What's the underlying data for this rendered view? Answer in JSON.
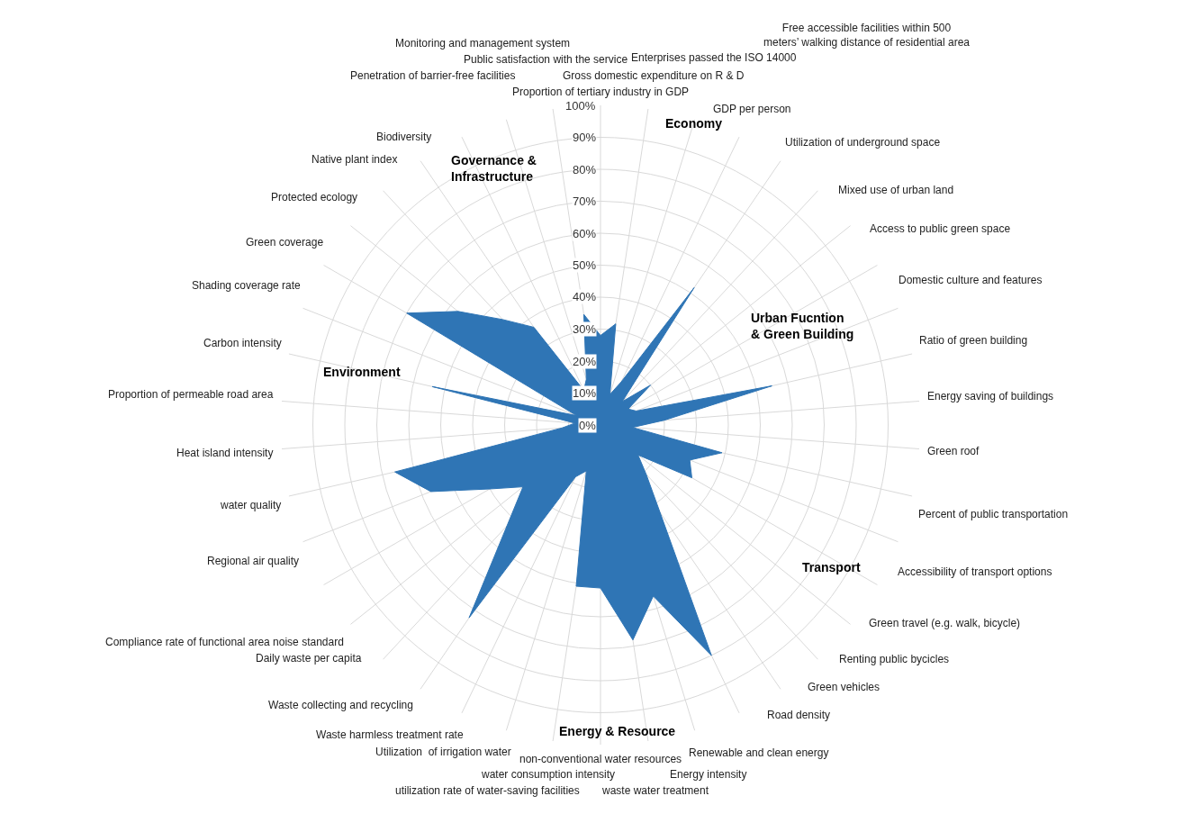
{
  "chart_data": {
    "type": "radar",
    "categories": [
      "Proportion of tertiary industry in GDP",
      "Gross domestic expenditure on R & D",
      "Enterprises passed the ISO 14000",
      "GDP per person",
      "Free accessible facilities within 500 meters’ walking distance of residential area",
      "Utilization of underground space",
      "Mixed use of urban land",
      "Access to public green space",
      "Domestic culture and features",
      "Ratio of green building",
      "Energy saving of buildings",
      "Green roof",
      "Percent of public transportation",
      "Accessibility of transport options",
      "Green travel (e.g. walk, bicycle)",
      "Renting public bycicles",
      "Green vehicles",
      "Road density",
      "Renewable and clean energy",
      "Energy intensity",
      "waste water treatment",
      "non-conventional water resources",
      "water consumption intensity",
      "utilization rate of water-saving facilities",
      "Utilization  of irrigation water",
      "Waste harmless treatment rate",
      "Waste collecting and recycling",
      "Daily waste per capita",
      "Compliance rate of functional area noise standard",
      "Regional air quality",
      "water quality",
      "Heat island intensity",
      "Proportion of permeable road area",
      "Carbon intensity",
      "Shading coverage rate",
      "Green coverage",
      "Protected ecology",
      "Native plant index",
      "Biodiversity",
      "Penetration of barrier-free facilities",
      "Monitoring and management system",
      "Public satisfaction with the service"
    ],
    "series": [
      {
        "color": "#2f75b5",
        "values": [
          28,
          32,
          10,
          15,
          52,
          10,
          20,
          10,
          12,
          55,
          20,
          10,
          39,
          30,
          33,
          15,
          21,
          33,
          80,
          56,
          68,
          51,
          51,
          15,
          18,
          73,
          43,
          31,
          40,
          57,
          66,
          12,
          8,
          54,
          8,
          70,
          57,
          45,
          37,
          12,
          15,
          35
        ]
      }
    ],
    "ylim": [
      0,
      100
    ],
    "yticks": [
      {
        "value": 0,
        "label": "0%"
      },
      {
        "value": 10,
        "label": "10%"
      },
      {
        "value": 20,
        "label": "20%"
      },
      {
        "value": 30,
        "label": "30%"
      },
      {
        "value": 40,
        "label": "40%"
      },
      {
        "value": 50,
        "label": "50%"
      },
      {
        "value": 60,
        "label": "60%"
      },
      {
        "value": 70,
        "label": "70%"
      },
      {
        "value": 80,
        "label": "80%"
      },
      {
        "value": 90,
        "label": "90%"
      },
      {
        "value": 100,
        "label": "100%"
      }
    ],
    "grid": true,
    "annotations": [
      "Economy",
      "Urban Fucntion & Green Building",
      "Transport",
      "Energy & Resource",
      "Environment",
      "Governance & Infrastructure"
    ]
  }
}
